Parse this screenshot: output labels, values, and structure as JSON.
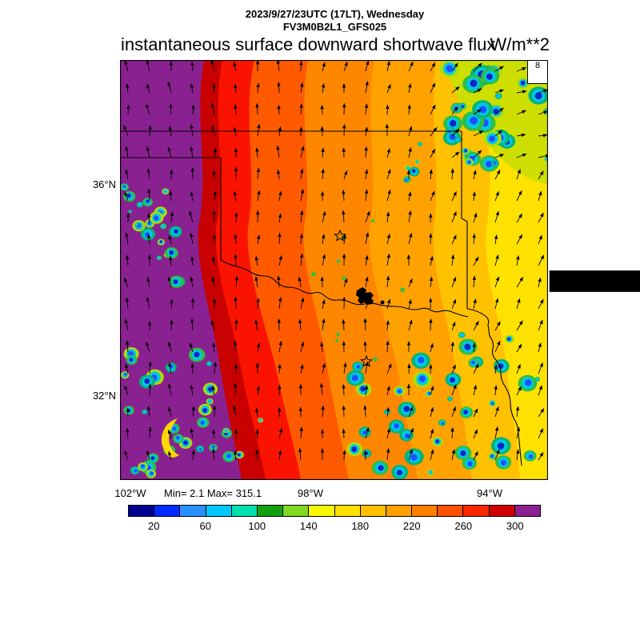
{
  "header": {
    "datetime": "2023/9/27/23UTC (17LT), Wednesday",
    "model": "FV3M0B2L1_GFS025",
    "title": "instantaneous surface downward shortwave flux",
    "units": "W/m**2"
  },
  "map": {
    "ref_vector_label": "8",
    "lat_ticks": [
      "36°N",
      "32°N"
    ],
    "lon_ticks": [
      "102°W",
      "98°W",
      "94°W"
    ],
    "stats": "Min= 2.1 Max= 315.1"
  },
  "colorbar": {
    "min": 0,
    "max": 320,
    "ticks": [
      20,
      60,
      100,
      140,
      180,
      220,
      260,
      300
    ],
    "colors": [
      "#000090",
      "#0028ff",
      "#2890ff",
      "#00c8ff",
      "#00e0b0",
      "#10a010",
      "#80d820",
      "#f8f800",
      "#ffe000",
      "#ffc000",
      "#ffa000",
      "#ff8000",
      "#ff5000",
      "#f82800",
      "#d00000",
      "#8c2090"
    ]
  }
}
